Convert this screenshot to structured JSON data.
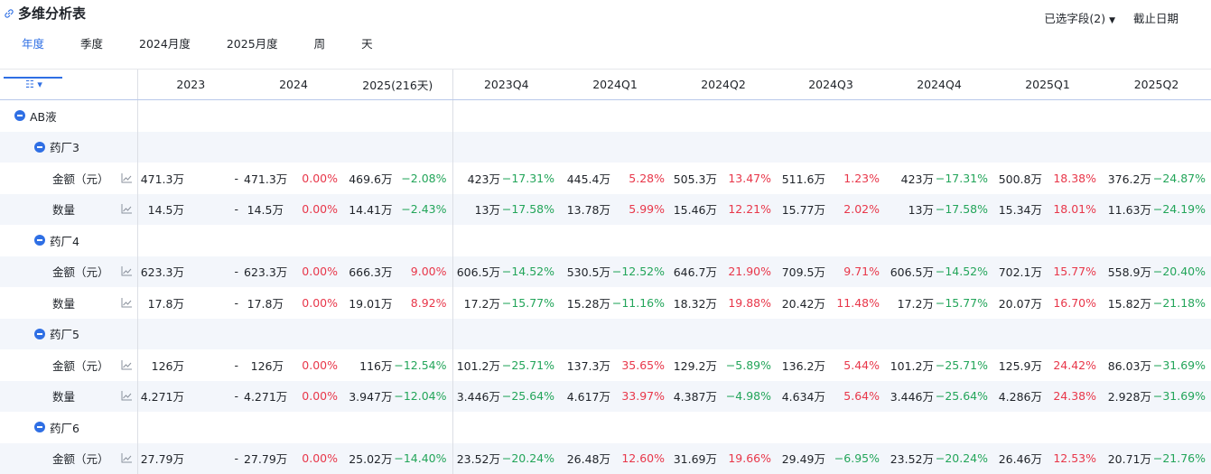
{
  "header": {
    "title": "多维分析表",
    "selected_fields": "已选字段(2)",
    "cutoff_date": "截止日期"
  },
  "tabs": [
    "年度",
    "季度",
    "2024月度",
    "2025月度",
    "周",
    "天"
  ],
  "active_tab": 0,
  "table": {
    "columns": [
      "2023",
      "2024",
      "2025(216天)",
      "2023Q4",
      "2024Q1",
      "2024Q2",
      "2024Q3",
      "2024Q4",
      "2025Q1",
      "2025Q2"
    ],
    "groups": [
      {
        "label": "AB液",
        "children": [
          {
            "label": "药厂3",
            "rows": [
              {
                "label": "金额（元）",
                "cells": [
                  {
                    "value": "471.3万",
                    "change": "-"
                  },
                  {
                    "value": "471.3万",
                    "change": "0.00%"
                  },
                  {
                    "value": "469.6万",
                    "change": "−2.08%"
                  },
                  {
                    "value": "423万",
                    "change": "−17.31%"
                  },
                  {
                    "value": "445.4万",
                    "change": "5.28%"
                  },
                  {
                    "value": "505.3万",
                    "change": "13.47%"
                  },
                  {
                    "value": "511.6万",
                    "change": "1.23%"
                  },
                  {
                    "value": "423万",
                    "change": "−17.31%"
                  },
                  {
                    "value": "500.8万",
                    "change": "18.38%"
                  },
                  {
                    "value": "376.2万",
                    "change": "−24.87%"
                  }
                ]
              },
              {
                "label": "数量",
                "cells": [
                  {
                    "value": "14.5万",
                    "change": "-"
                  },
                  {
                    "value": "14.5万",
                    "change": "0.00%"
                  },
                  {
                    "value": "14.41万",
                    "change": "−2.43%"
                  },
                  {
                    "value": "13万",
                    "change": "−17.58%"
                  },
                  {
                    "value": "13.78万",
                    "change": "5.99%"
                  },
                  {
                    "value": "15.46万",
                    "change": "12.21%"
                  },
                  {
                    "value": "15.77万",
                    "change": "2.02%"
                  },
                  {
                    "value": "13万",
                    "change": "−17.58%"
                  },
                  {
                    "value": "15.34万",
                    "change": "18.01%"
                  },
                  {
                    "value": "11.63万",
                    "change": "−24.19%"
                  }
                ]
              }
            ]
          },
          {
            "label": "药厂4",
            "rows": [
              {
                "label": "金额（元）",
                "cells": [
                  {
                    "value": "623.3万",
                    "change": "-"
                  },
                  {
                    "value": "623.3万",
                    "change": "0.00%"
                  },
                  {
                    "value": "666.3万",
                    "change": "9.00%"
                  },
                  {
                    "value": "606.5万",
                    "change": "−14.52%"
                  },
                  {
                    "value": "530.5万",
                    "change": "−12.52%"
                  },
                  {
                    "value": "646.7万",
                    "change": "21.90%"
                  },
                  {
                    "value": "709.5万",
                    "change": "9.71%"
                  },
                  {
                    "value": "606.5万",
                    "change": "−14.52%"
                  },
                  {
                    "value": "702.1万",
                    "change": "15.77%"
                  },
                  {
                    "value": "558.9万",
                    "change": "−20.40%"
                  }
                ]
              },
              {
                "label": "数量",
                "cells": [
                  {
                    "value": "17.8万",
                    "change": "-"
                  },
                  {
                    "value": "17.8万",
                    "change": "0.00%"
                  },
                  {
                    "value": "19.01万",
                    "change": "8.92%"
                  },
                  {
                    "value": "17.2万",
                    "change": "−15.77%"
                  },
                  {
                    "value": "15.28万",
                    "change": "−11.16%"
                  },
                  {
                    "value": "18.32万",
                    "change": "19.88%"
                  },
                  {
                    "value": "20.42万",
                    "change": "11.48%"
                  },
                  {
                    "value": "17.2万",
                    "change": "−15.77%"
                  },
                  {
                    "value": "20.07万",
                    "change": "16.70%"
                  },
                  {
                    "value": "15.82万",
                    "change": "−21.18%"
                  }
                ]
              }
            ]
          },
          {
            "label": "药厂5",
            "rows": [
              {
                "label": "金额（元）",
                "cells": [
                  {
                    "value": "126万",
                    "change": "-"
                  },
                  {
                    "value": "126万",
                    "change": "0.00%"
                  },
                  {
                    "value": "116万",
                    "change": "−12.54%"
                  },
                  {
                    "value": "101.2万",
                    "change": "−25.71%"
                  },
                  {
                    "value": "137.3万",
                    "change": "35.65%"
                  },
                  {
                    "value": "129.2万",
                    "change": "−5.89%"
                  },
                  {
                    "value": "136.2万",
                    "change": "5.44%"
                  },
                  {
                    "value": "101.2万",
                    "change": "−25.71%"
                  },
                  {
                    "value": "125.9万",
                    "change": "24.42%"
                  },
                  {
                    "value": "86.03万",
                    "change": "−31.69%"
                  }
                ]
              },
              {
                "label": "数量",
                "cells": [
                  {
                    "value": "4.271万",
                    "change": "-"
                  },
                  {
                    "value": "4.271万",
                    "change": "0.00%"
                  },
                  {
                    "value": "3.947万",
                    "change": "−12.04%"
                  },
                  {
                    "value": "3.446万",
                    "change": "−25.64%"
                  },
                  {
                    "value": "4.617万",
                    "change": "33.97%"
                  },
                  {
                    "value": "4.387万",
                    "change": "−4.98%"
                  },
                  {
                    "value": "4.634万",
                    "change": "5.64%"
                  },
                  {
                    "value": "3.446万",
                    "change": "−25.64%"
                  },
                  {
                    "value": "4.286万",
                    "change": "24.38%"
                  },
                  {
                    "value": "2.928万",
                    "change": "−31.69%"
                  }
                ]
              }
            ]
          },
          {
            "label": "药厂6",
            "rows": [
              {
                "label": "金额（元）",
                "cells": [
                  {
                    "value": "27.79万",
                    "change": "-"
                  },
                  {
                    "value": "27.79万",
                    "change": "0.00%"
                  },
                  {
                    "value": "25.02万",
                    "change": "−14.40%"
                  },
                  {
                    "value": "23.52万",
                    "change": "−20.24%"
                  },
                  {
                    "value": "26.48万",
                    "change": "12.60%"
                  },
                  {
                    "value": "31.69万",
                    "change": "19.66%"
                  },
                  {
                    "value": "29.49万",
                    "change": "−6.95%"
                  },
                  {
                    "value": "23.52万",
                    "change": "−20.24%"
                  },
                  {
                    "value": "26.46万",
                    "change": "12.53%"
                  },
                  {
                    "value": "20.71万",
                    "change": "−21.76%"
                  }
                ]
              }
            ]
          }
        ]
      }
    ]
  }
}
